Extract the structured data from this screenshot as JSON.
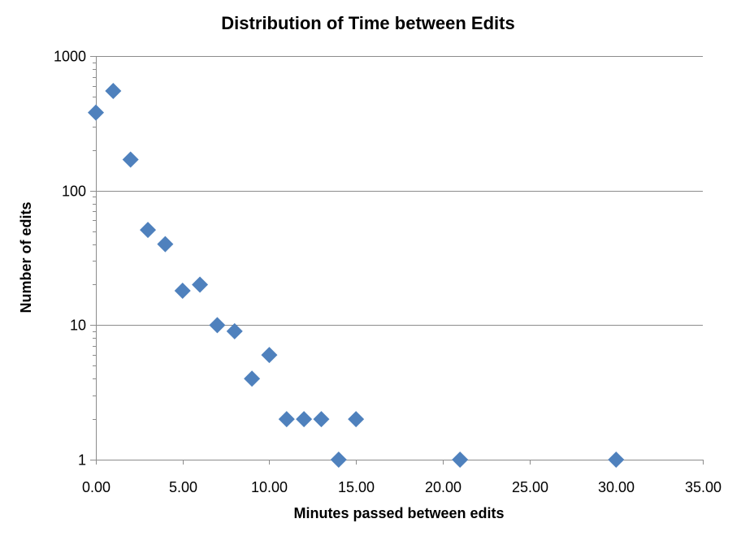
{
  "chart_data": {
    "type": "scatter",
    "title": "Distribution of Time between Edits",
    "xlabel": "Minutes passed between edits",
    "ylabel": "Number of edits",
    "x_scale": "linear",
    "y_scale": "log",
    "xlim": [
      0,
      35
    ],
    "ylim": [
      1,
      1000
    ],
    "x_ticks": [
      "0.00",
      "5.00",
      "10.00",
      "15.00",
      "20.00",
      "25.00",
      "30.00",
      "35.00"
    ],
    "x_tick_values": [
      0,
      5,
      10,
      15,
      20,
      25,
      30,
      35
    ],
    "y_ticks": [
      "1",
      "10",
      "100",
      "1000"
    ],
    "y_tick_values": [
      1,
      10,
      100,
      1000
    ],
    "grid": "horizontal major gridlines",
    "legend": "none",
    "marker": "diamond",
    "marker_color": "#4f81bd",
    "series": [
      {
        "points": [
          {
            "x": 0,
            "y": 380
          },
          {
            "x": 1,
            "y": 550
          },
          {
            "x": 2,
            "y": 170
          },
          {
            "x": 3,
            "y": 51
          },
          {
            "x": 4,
            "y": 40
          },
          {
            "x": 5,
            "y": 18
          },
          {
            "x": 6,
            "y": 20
          },
          {
            "x": 7,
            "y": 10
          },
          {
            "x": 8,
            "y": 9
          },
          {
            "x": 9,
            "y": 4
          },
          {
            "x": 10,
            "y": 6
          },
          {
            "x": 11,
            "y": 2
          },
          {
            "x": 12,
            "y": 2
          },
          {
            "x": 13,
            "y": 2
          },
          {
            "x": 14,
            "y": 1
          },
          {
            "x": 15,
            "y": 2
          },
          {
            "x": 21,
            "y": 1
          },
          {
            "x": 30,
            "y": 1
          }
        ]
      }
    ]
  }
}
